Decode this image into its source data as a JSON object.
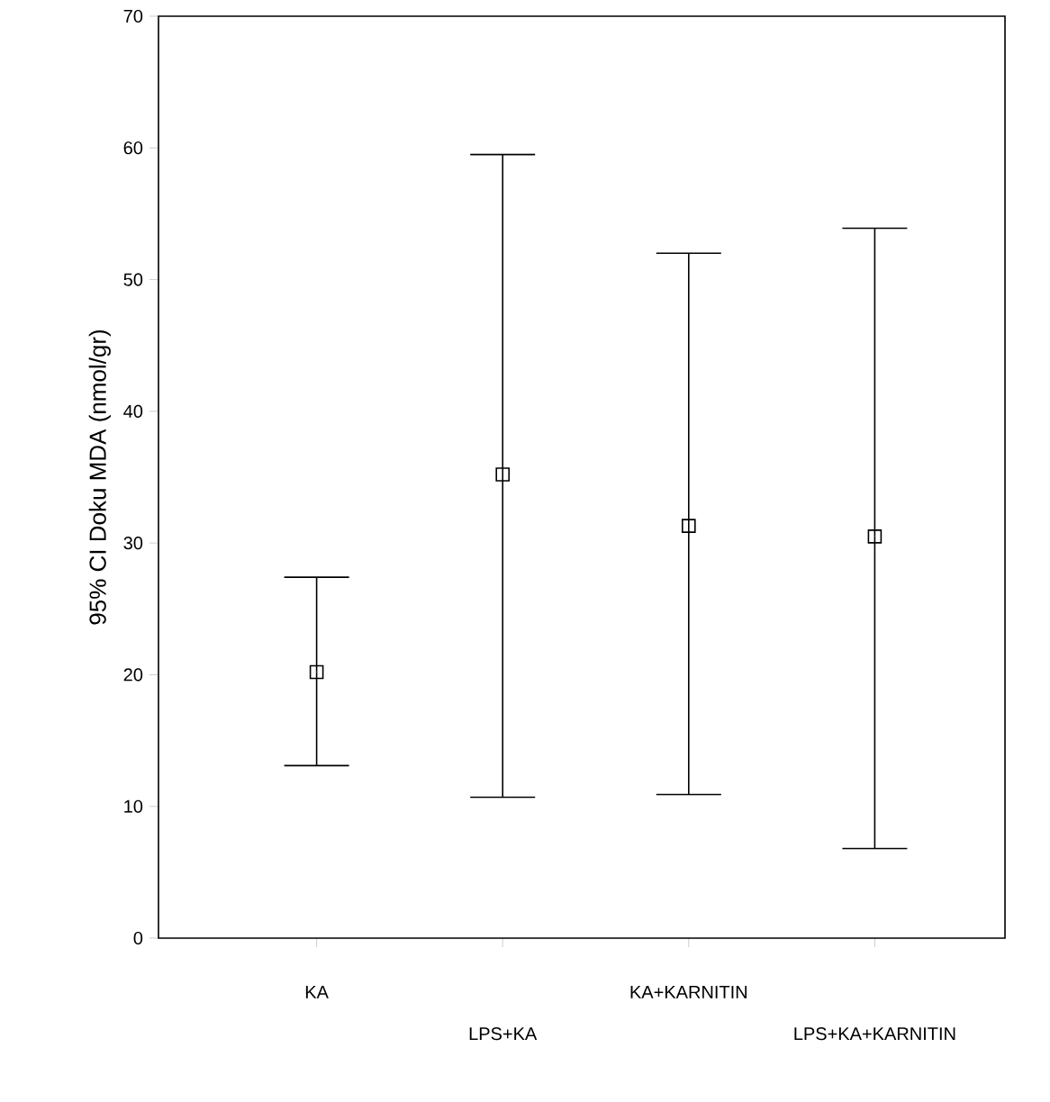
{
  "chart_data": {
    "type": "scatter",
    "ylabel": "95% CI Doku MDA (nmol/gr)",
    "categories": [
      "KA",
      "LPS+KA",
      "KA+KARNITIN",
      "LPS+KA+KARNITIN"
    ],
    "values": [
      20.2,
      35.2,
      31.3,
      30.5
    ],
    "errors": [
      [
        13.1,
        27.4
      ],
      [
        10.7,
        59.5
      ],
      [
        10.9,
        52.0
      ],
      [
        6.8,
        53.9
      ]
    ],
    "color": "#000000",
    "marker": "square",
    "ylim": [
      0,
      70
    ],
    "yticks": [
      0,
      10,
      20,
      30,
      40,
      50,
      60,
      70
    ]
  }
}
